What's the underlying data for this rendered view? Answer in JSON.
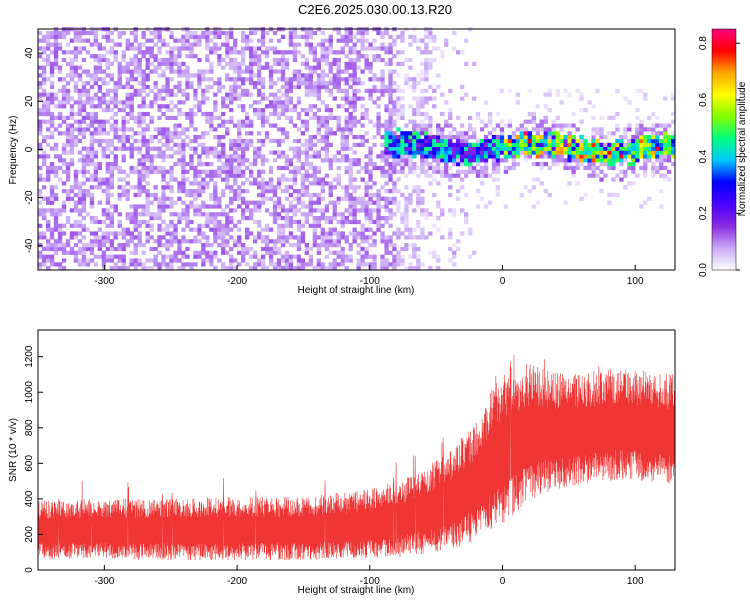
{
  "figure": {
    "title": "C2E6.2025.030.00.13.R20"
  },
  "chart_data": [
    {
      "type": "heatmap",
      "xlabel": "Height of straight line (km)",
      "ylabel": "Frequency (Hz)",
      "xlim": [
        -350,
        130
      ],
      "ylim": [
        -50,
        50
      ],
      "x_ticks": [
        -300,
        -200,
        -100,
        0,
        100
      ],
      "y_ticks": [
        -40,
        -20,
        0,
        20,
        40
      ],
      "colorbar": {
        "label": "Normalized spectral amplitude",
        "range": [
          0,
          0.85
        ],
        "ticks": [
          0.0,
          0.2,
          0.4,
          0.6,
          0.8
        ],
        "colormap": [
          "#ffffff",
          "#c9a8f5",
          "#8a2be2",
          "#4b00ff",
          "#0000ff",
          "#00c8ff",
          "#00ff80",
          "#80ff00",
          "#ffff00",
          "#ffa500",
          "#ff0000",
          "#ff0080"
        ]
      },
      "regions": [
        {
          "x_range": [
            -350,
            -80
          ],
          "freq_range": [
            -50,
            50
          ],
          "amplitude": [
            0.05,
            0.12
          ]
        },
        {
          "x_range": [
            -80,
            -20
          ],
          "freq_range": [
            -50,
            50
          ],
          "amplitude": [
            0.02,
            0.08
          ]
        },
        {
          "x_range": [
            -90,
            130
          ],
          "freq_range": [
            -6,
            6
          ],
          "amplitude": [
            0.2,
            0.85
          ]
        }
      ]
    },
    {
      "type": "line",
      "xlabel": "Height of straight line (km)",
      "ylabel": "SNR (10 * v/v)",
      "xlim": [
        -350,
        130
      ],
      "ylim": [
        0,
        1350
      ],
      "x_ticks": [
        -300,
        -200,
        -100,
        0,
        100
      ],
      "y_ticks": [
        0,
        200,
        400,
        600,
        800,
        1000,
        1200
      ],
      "color": "#f03535",
      "envelope": {
        "x": [
          -350,
          -300,
          -250,
          -200,
          -150,
          -100,
          -80,
          -60,
          -40,
          -20,
          0,
          20,
          40,
          60,
          80,
          100,
          120,
          130
        ],
        "low": [
          60,
          60,
          55,
          55,
          55,
          60,
          70,
          90,
          110,
          160,
          250,
          380,
          450,
          480,
          500,
          500,
          480,
          470
        ],
        "high": [
          360,
          370,
          370,
          380,
          380,
          420,
          460,
          520,
          620,
          780,
          1050,
          1100,
          1050,
          1050,
          1080,
          1070,
          1050,
          1040
        ]
      }
    }
  ]
}
